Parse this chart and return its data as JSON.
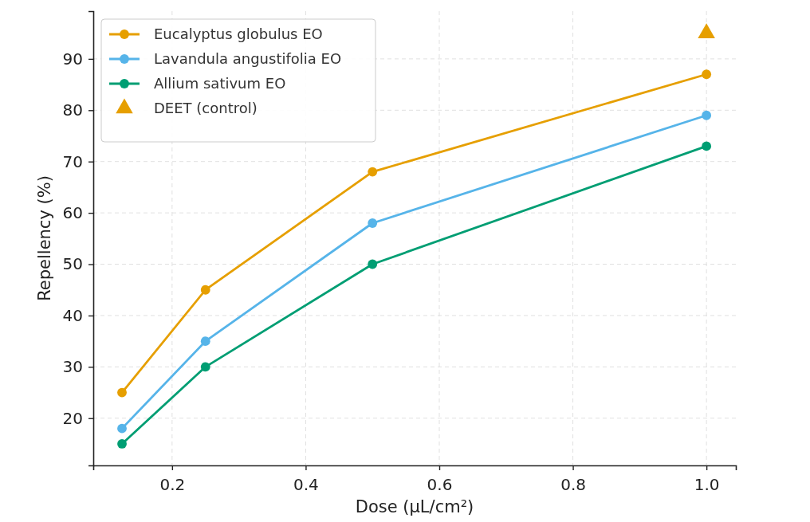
{
  "chart_data": {
    "type": "line",
    "xlabel": "Dose (µL/cm²)",
    "ylabel": "Repellency (%)",
    "x": [
      0.125,
      0.25,
      0.5,
      1.0
    ],
    "series": [
      {
        "name": "Eucalyptus globulus EO",
        "color": "#e69f00",
        "values": [
          25,
          45,
          68,
          87
        ]
      },
      {
        "name": "Lavandula angustifolia EO",
        "color": "#56b4e9",
        "values": [
          18,
          35,
          58,
          79
        ]
      },
      {
        "name": "Allium sativum EO",
        "color": "#009e73",
        "values": [
          15,
          30,
          50,
          73
        ]
      },
      {
        "name": "DEET (control)",
        "type": "scatter",
        "marker": "triangle",
        "color": "#e69f00",
        "x": [
          1.0
        ],
        "values": [
          95
        ]
      }
    ],
    "xlim": [
      0.082,
      1.044
    ],
    "xticks": [
      {
        "value": 0.2,
        "label": "0.2"
      },
      {
        "value": 0.4,
        "label": "0.4"
      },
      {
        "value": 0.6,
        "label": "0.6"
      },
      {
        "value": 0.8,
        "label": "0.8"
      },
      {
        "value": 1.0,
        "label": "1.0"
      }
    ],
    "ylim": [
      10.8,
      99.3
    ],
    "yticks": [
      20,
      30,
      40,
      50,
      60,
      70,
      80,
      90
    ],
    "grid": true,
    "legend": "top left",
    "marker": "circle",
    "line_style": "solid"
  }
}
